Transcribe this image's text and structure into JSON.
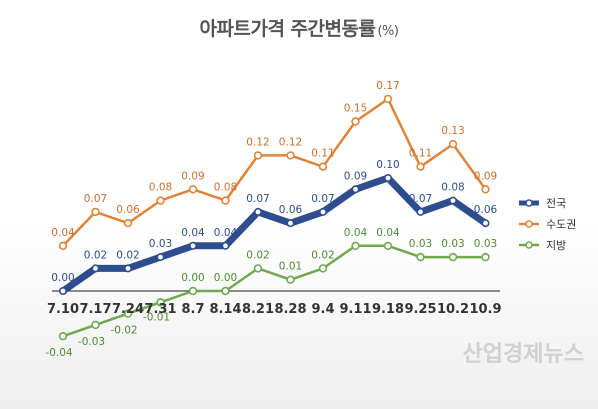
{
  "chart_data": {
    "type": "line",
    "title": "아파트가격 주간변동률",
    "title_unit": "(%)",
    "categories": [
      "7.10",
      "7.17",
      "7.24",
      "7.31",
      "8.7",
      "8.14",
      "8.21",
      "8.28",
      "9.4",
      "9.11",
      "9.18",
      "9.25",
      "10.2",
      "10.9"
    ],
    "series": [
      {
        "name": "전국",
        "color": "#2e4d8e",
        "values": [
          0.0,
          0.02,
          0.02,
          0.03,
          0.04,
          0.04,
          0.07,
          0.06,
          0.07,
          0.09,
          0.1,
          0.07,
          0.08,
          0.06
        ]
      },
      {
        "name": "수도권",
        "color": "#e0843a",
        "values": [
          0.04,
          0.07,
          0.06,
          0.08,
          0.09,
          0.08,
          0.12,
          0.12,
          0.11,
          0.15,
          0.17,
          0.11,
          0.13,
          0.09
        ]
      },
      {
        "name": "지방",
        "color": "#6fa84f",
        "values": [
          -0.04,
          -0.03,
          -0.02,
          -0.01,
          0.0,
          0.0,
          0.02,
          0.01,
          0.02,
          0.04,
          0.04,
          0.03,
          0.03,
          0.03
        ]
      }
    ],
    "ylim": [
      -0.04,
      0.17
    ],
    "grid": false,
    "legend": "right"
  },
  "watermark": "산업경제뉴스"
}
